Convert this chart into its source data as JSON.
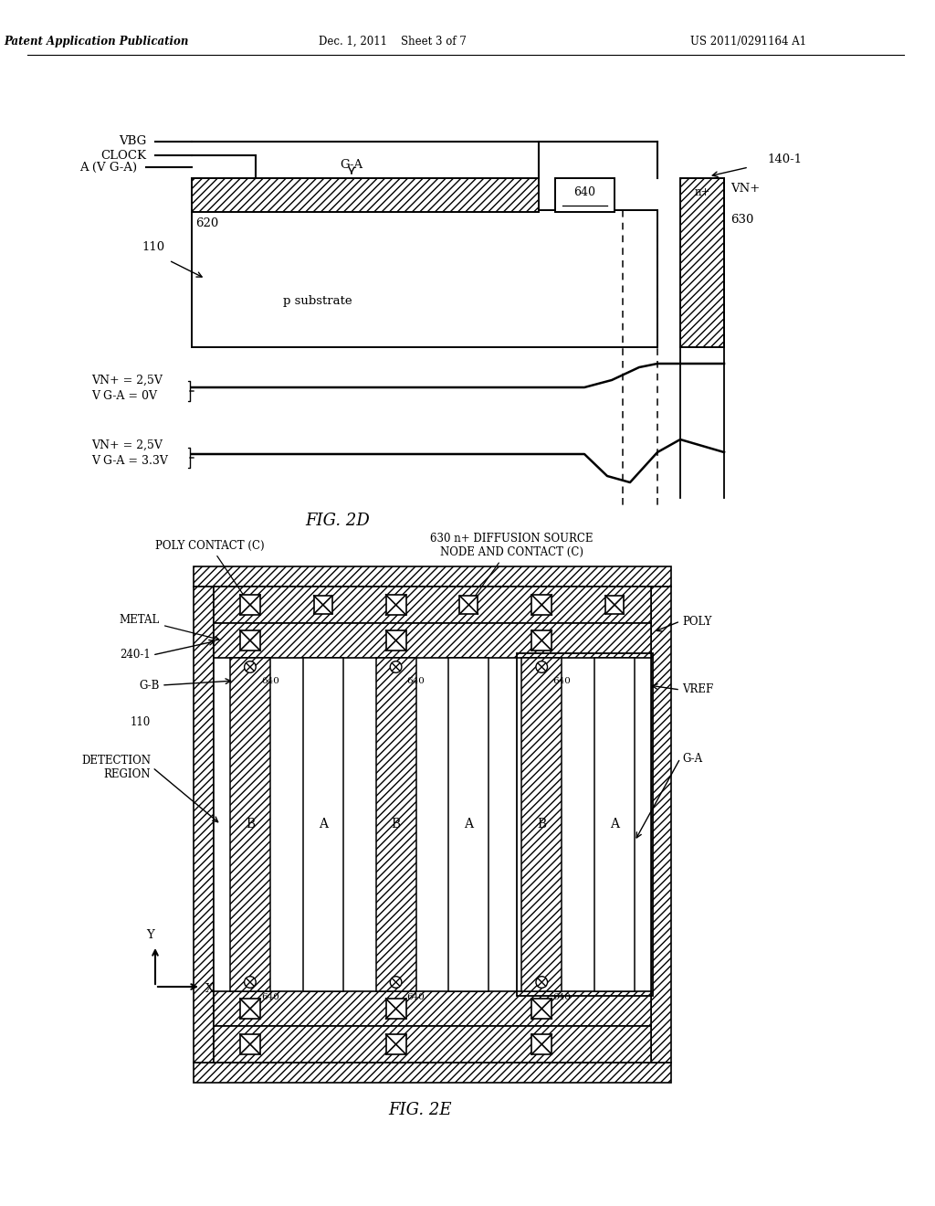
{
  "bg_color": "#ffffff",
  "header_left": "Patent Application Publication",
  "header_center": "Dec. 1, 2011    Sheet 3 of 7",
  "header_right": "US 2011/0291164 A1",
  "fig2d_label": "FIG. 2D",
  "fig2e_label": "FIG. 2E"
}
